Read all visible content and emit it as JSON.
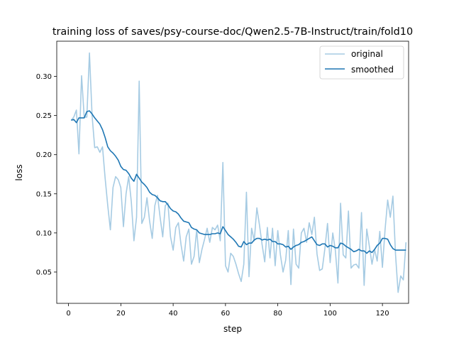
{
  "chart_data": {
    "type": "line",
    "title": "training loss of saves/psy-course-doc/Qwen2.5-7B-Instruct/train/fold10",
    "xlabel": "step",
    "ylabel": "loss",
    "xlim": [
      -4.5,
      130
    ],
    "ylim": [
      0.01,
      0.345
    ],
    "xticks": [
      0,
      20,
      40,
      60,
      80,
      100,
      120
    ],
    "yticks": [
      0.05,
      0.1,
      0.15,
      0.2,
      0.25,
      0.3
    ],
    "ytick_labels": [
      "0.05",
      "0.10",
      "0.15",
      "0.20",
      "0.25",
      "0.30"
    ],
    "grid": false,
    "legend_placement": "top-right",
    "series": [
      {
        "name": "original",
        "color": "#a6cbe3",
        "values": [
          0.244,
          0.248,
          0.257,
          0.201,
          0.301,
          0.248,
          0.248,
          0.33,
          0.25,
          0.209,
          0.21,
          0.203,
          0.21,
          0.17,
          0.135,
          0.104,
          0.158,
          0.172,
          0.168,
          0.158,
          0.108,
          0.15,
          0.172,
          0.14,
          0.09,
          0.12,
          0.294,
          0.112,
          0.12,
          0.145,
          0.115,
          0.093,
          0.135,
          0.148,
          0.12,
          0.095,
          0.135,
          0.138,
          0.095,
          0.078,
          0.107,
          0.113,
          0.085,
          0.064,
          0.095,
          0.105,
          0.06,
          0.07,
          0.104,
          0.062,
          0.079,
          0.092,
          0.106,
          0.088,
          0.107,
          0.104,
          0.11,
          0.09,
          0.19,
          0.058,
          0.05,
          0.074,
          0.07,
          0.06,
          0.048,
          0.038,
          0.06,
          0.152,
          0.044,
          0.106,
          0.09,
          0.132,
          0.11,
          0.085,
          0.063,
          0.107,
          0.068,
          0.106,
          0.058,
          0.103,
          0.072,
          0.05,
          0.065,
          0.103,
          0.034,
          0.105,
          0.06,
          0.055,
          0.1,
          0.106,
          0.088,
          0.113,
          0.098,
          0.12,
          0.073,
          0.052,
          0.054,
          0.08,
          0.112,
          0.062,
          0.1,
          0.078,
          0.036,
          0.138,
          0.072,
          0.068,
          0.128,
          0.055,
          0.059,
          0.06,
          0.055,
          0.126,
          0.033,
          0.105,
          0.083,
          0.06,
          0.079,
          0.064,
          0.102,
          0.056,
          0.104,
          0.142,
          0.12,
          0.147,
          0.072,
          0.024,
          0.045,
          0.04,
          0.088
        ]
      },
      {
        "name": "smoothed",
        "color": "#1f77b4",
        "values": [
          0.244,
          0.245,
          0.241,
          0.247,
          0.247,
          0.247,
          0.255,
          0.256,
          0.252,
          0.247,
          0.243,
          0.239,
          0.232,
          0.222,
          0.21,
          0.205,
          0.202,
          0.198,
          0.193,
          0.185,
          0.181,
          0.18,
          0.176,
          0.17,
          0.166,
          0.175,
          0.17,
          0.165,
          0.162,
          0.158,
          0.152,
          0.149,
          0.148,
          0.145,
          0.141,
          0.14,
          0.14,
          0.136,
          0.131,
          0.128,
          0.127,
          0.124,
          0.119,
          0.115,
          0.114,
          0.113,
          0.107,
          0.105,
          0.104,
          0.1,
          0.099,
          0.098,
          0.098,
          0.098,
          0.099,
          0.099,
          0.1,
          0.099,
          0.108,
          0.103,
          0.098,
          0.095,
          0.092,
          0.088,
          0.083,
          0.082,
          0.089,
          0.085,
          0.087,
          0.087,
          0.091,
          0.093,
          0.093,
          0.091,
          0.092,
          0.091,
          0.092,
          0.089,
          0.089,
          0.086,
          0.086,
          0.085,
          0.082,
          0.083,
          0.079,
          0.082,
          0.084,
          0.085,
          0.088,
          0.089,
          0.091,
          0.093,
          0.095,
          0.09,
          0.085,
          0.084,
          0.086,
          0.086,
          0.082,
          0.084,
          0.083,
          0.081,
          0.081,
          0.087,
          0.086,
          0.083,
          0.081,
          0.079,
          0.076,
          0.077,
          0.079,
          0.077,
          0.077,
          0.074,
          0.077,
          0.075,
          0.079,
          0.084,
          0.087,
          0.093,
          0.093,
          0.092,
          0.085,
          0.08,
          0.078,
          0.078,
          0.078,
          0.078,
          0.078
        ]
      }
    ]
  }
}
